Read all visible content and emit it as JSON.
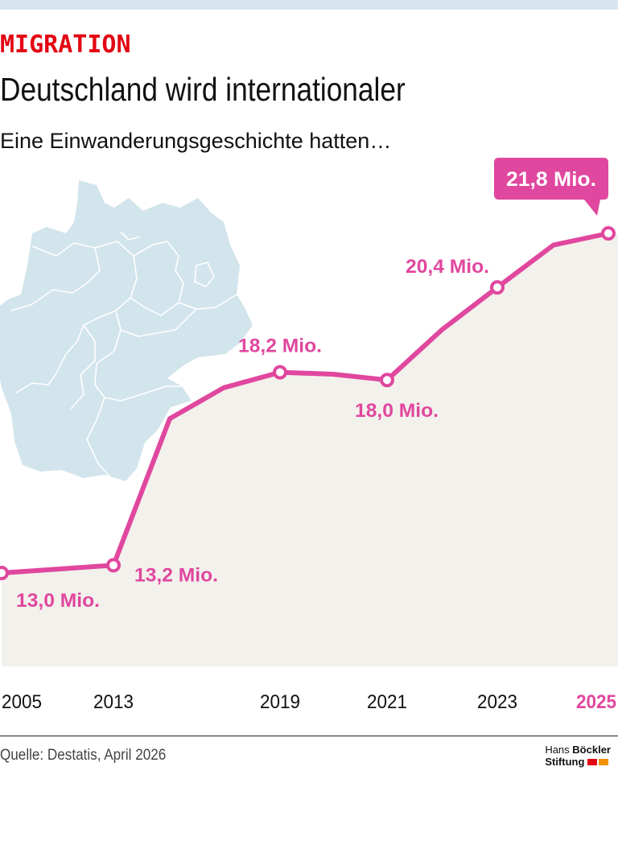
{
  "header": {
    "kicker": "MIGRATION",
    "title": "Deutschland wird internationaler",
    "subtitle": "Eine Einwanderungsgeschichte hatten…"
  },
  "footer": {
    "source": "Quelle: Destatis, April 2026",
    "logo_line1_a": "Hans",
    "logo_line1_b": "Böckler",
    "logo_line2": "Stiftung"
  },
  "colors": {
    "line": "#e0479e",
    "area": "#f3f1ec",
    "map": "#d2e4ec",
    "kicker": "#e30613",
    "highlight_label": "#e0479e",
    "logo_red": "#e30613",
    "logo_orange": "#f39200"
  },
  "chart_data": {
    "type": "area",
    "x": [
      2005,
      2013,
      2015,
      2017,
      2019,
      2020,
      2021,
      2022,
      2023,
      2024,
      2025
    ],
    "series": [
      {
        "values": [
          13.0,
          13.2,
          17.0,
          17.8,
          18.2,
          18.15,
          18.0,
          19.3,
          20.4,
          21.5,
          21.8
        ]
      }
    ],
    "labeled_points": [
      {
        "x": 2005,
        "value": 13.0,
        "label": "13,0 Mio."
      },
      {
        "x": 2013,
        "value": 13.2,
        "label": "13,2 Mio."
      },
      {
        "x": 2019,
        "value": 18.2,
        "label": "18,2 Mio."
      },
      {
        "x": 2021,
        "value": 18.0,
        "label": "18,0 Mio."
      },
      {
        "x": 2023,
        "value": 20.4,
        "label": "20,4 Mio."
      },
      {
        "x": 2025,
        "value": 21.8,
        "label": "21,8 Mio.",
        "highlight": true
      }
    ],
    "x_ticks": [
      "2005",
      "2013",
      "2019",
      "2021",
      "2023",
      "2025"
    ],
    "highlight_tick": "2025",
    "grid": false,
    "legend": "none",
    "decoration": "map of Germany behind the chart"
  }
}
